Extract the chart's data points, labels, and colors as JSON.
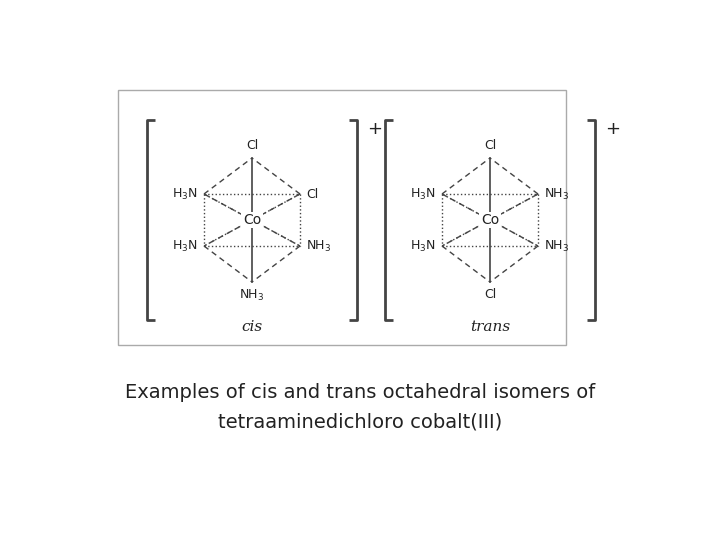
{
  "bg_color": "#ffffff",
  "text_color": "#222222",
  "line_color": "#444444",
  "title_line1": "Examples of cis and trans octahedral isomers of",
  "title_line2": "tetraaminedichloro cobalt(III)",
  "title_fontsize": 14,
  "label_fontsize": 9,
  "cis_label": "cis",
  "trans_label": "trans",
  "bracket_color": "#444444",
  "box_edge_color": "#aaaaaa",
  "box_face_color": "#ffffff"
}
